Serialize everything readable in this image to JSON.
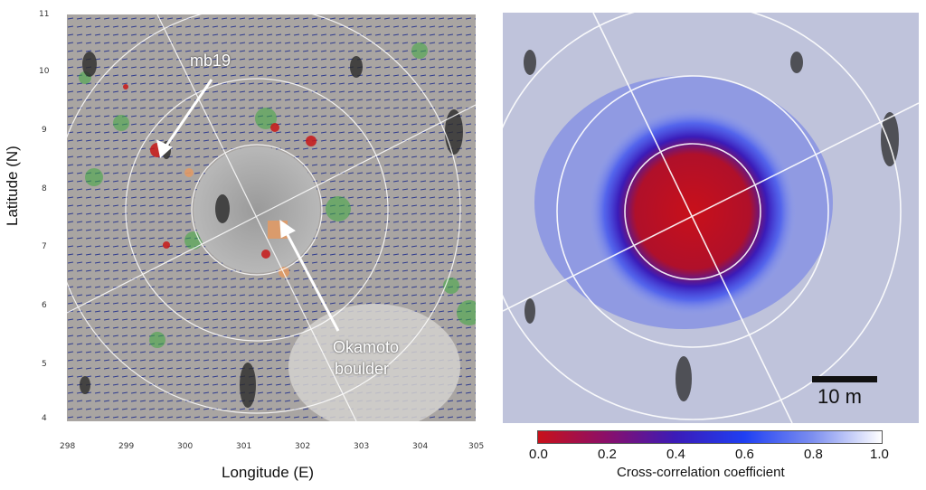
{
  "left_panel": {
    "y_axis_title": "Latitude (N)",
    "x_axis_title": "Longitude (E)",
    "y_ticks": [
      "4",
      "5",
      "6",
      "7",
      "8",
      "9",
      "10",
      "11"
    ],
    "x_ticks": [
      "298",
      "299",
      "300",
      "301",
      "302",
      "303",
      "304",
      "305"
    ],
    "annotations": {
      "mb19": "mb19",
      "okamoto_line1": "Okamoto",
      "okamoto_line2": "boulder"
    }
  },
  "right_panel": {
    "scale_bar_label": "10 m",
    "colorbar": {
      "title": "Cross-correlation coefficient",
      "ticks": [
        "0.0",
        "0.2",
        "0.4",
        "0.6",
        "0.8",
        "1.0"
      ],
      "colors": [
        "#c8101a",
        "#8a0f6a",
        "#3b1bb8",
        "#1f3ff2",
        "#7d8ff0",
        "#ffffff"
      ]
    }
  }
}
